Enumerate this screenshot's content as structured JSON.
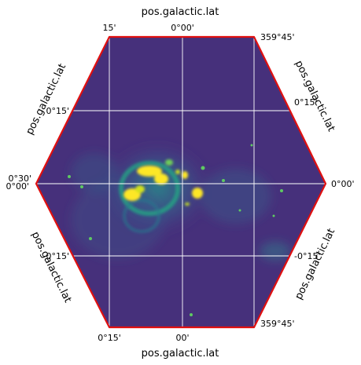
{
  "chart_data": {
    "type": "heatmap",
    "projection": "hexagonal all-sky image frame",
    "colormap": "viridis",
    "frame_color": "#e01010",
    "grid_color": "#ffffff",
    "grid": true,
    "axis_labels": {
      "top": "pos.galactic.lat",
      "bottom": "pos.galactic.lat",
      "upper_left": "pos.galactic.lat",
      "upper_right": "pos.galactic.lat",
      "lower_left": "pos.galactic.lat",
      "lower_right": "pos.galactic.lat"
    },
    "ticks": {
      "top": [
        "15'",
        "0°00'",
        "359°45'"
      ],
      "bottom": [
        "0°15'",
        "00'",
        "359°45'"
      ],
      "left": [
        "0°15'",
        "0°30'",
        "0°00'",
        "0°15'"
      ],
      "right": [
        "0°15'",
        "0°00'",
        "-0°15'"
      ]
    },
    "sources": [
      {
        "name": "bright ring core",
        "intensity": 1.0
      },
      {
        "name": "west bright knot",
        "intensity": 0.95
      },
      {
        "name": "east bright knot",
        "intensity": 0.95
      },
      {
        "name": "diffuse shell",
        "intensity": 0.35
      },
      {
        "name": "background",
        "intensity": 0.1
      }
    ]
  }
}
